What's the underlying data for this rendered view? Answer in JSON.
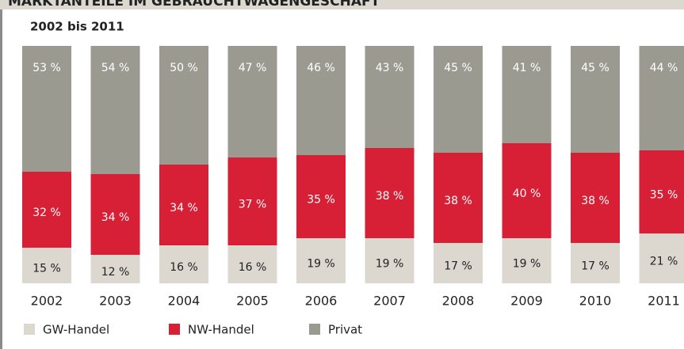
{
  "chart_data": {
    "type": "stacked_bar",
    "title": "MARKTANTEILE IM GEBRAUCHTWAGENGESCHÄFT",
    "subtitle": "2002 bis 2011",
    "categories": [
      "2002",
      "2003",
      "2004",
      "2005",
      "2006",
      "2007",
      "2008",
      "2009",
      "2010",
      "2011"
    ],
    "ylim": [
      0,
      100
    ],
    "series": [
      {
        "name": "GW-Handel",
        "color": "#dcd8d0",
        "label_color": "#222222",
        "values": [
          15,
          12,
          16,
          16,
          19,
          19,
          17,
          19,
          17,
          21
        ],
        "value_labels": [
          "15 %",
          "12 %",
          "16 %",
          "16 %",
          "19 %",
          "19 %",
          "17 %",
          "19 %",
          "17 %",
          "21 %"
        ]
      },
      {
        "name": "NW-Handel",
        "color": "#d71f35",
        "label_color": "#ffffff",
        "values": [
          32,
          34,
          34,
          37,
          35,
          38,
          38,
          40,
          38,
          35
        ],
        "value_labels": [
          "32 %",
          "34 %",
          "34 %",
          "37 %",
          "35 %",
          "38 %",
          "38 %",
          "40 %",
          "38 %",
          "35 %"
        ]
      },
      {
        "name": "Privat",
        "color": "#9b9a91",
        "label_color": "#ffffff",
        "values": [
          53,
          54,
          50,
          47,
          46,
          43,
          45,
          41,
          45,
          44
        ],
        "value_labels": [
          "53 %",
          "54 %",
          "50 %",
          "47 %",
          "46 %",
          "43 %",
          "45 %",
          "41 %",
          "45 %",
          "44 %"
        ]
      }
    ]
  }
}
